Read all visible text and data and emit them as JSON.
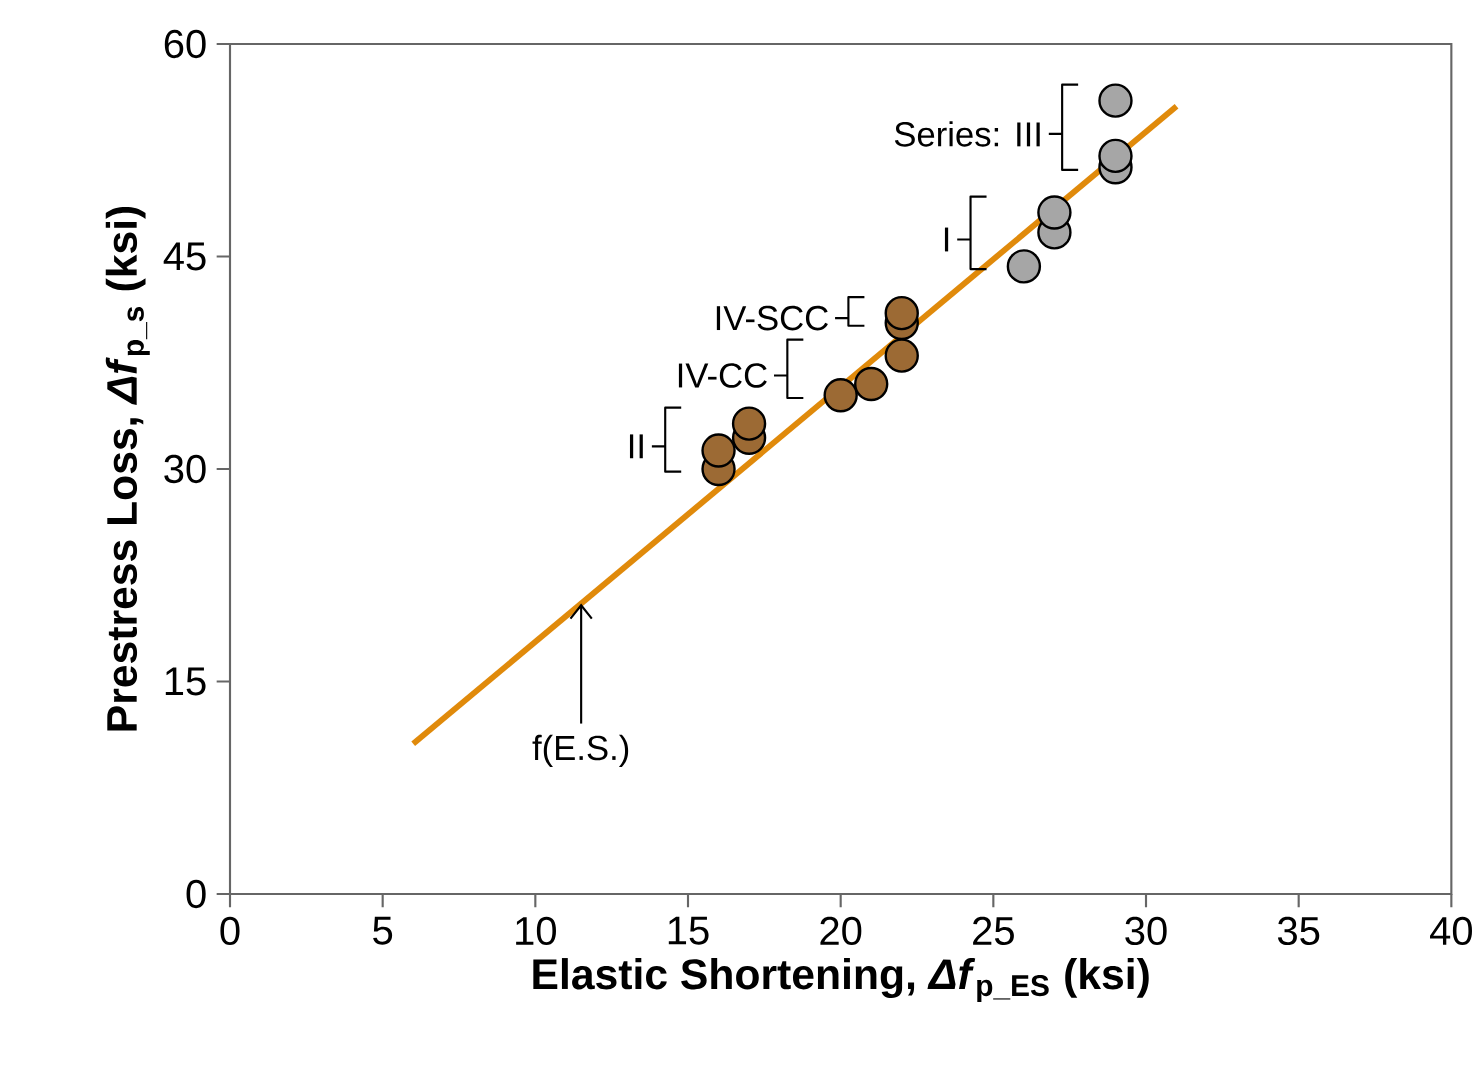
{
  "chart_data": {
    "type": "scatter",
    "xlabel": "Elastic Shortening, *Δf*$_{p_ES}$ (ksi)",
    "ylabel": "Prestress Loss, *Δf*$_{p_s}$  (ksi)",
    "xlim": [
      0,
      40
    ],
    "xticks": [
      0,
      5,
      10,
      15,
      20,
      25,
      30,
      35,
      40
    ],
    "ylim": [
      0,
      60
    ],
    "yticks": [
      0,
      15,
      30,
      45,
      60
    ],
    "grid": false,
    "legend": false,
    "marker": "circle",
    "series": [
      {
        "color": "#a6a6a6",
        "x": [
          29,
          29,
          29
        ],
        "values": [
          51.3,
          52.1,
          56.0
        ]
      },
      {
        "color": "#a6a6a6",
        "x": [
          26,
          27,
          27
        ],
        "values": [
          44.3,
          46.7,
          48.1
        ]
      },
      {
        "color": "#9c6a34",
        "x": [
          22,
          22
        ],
        "values": [
          40.3,
          41.0
        ]
      },
      {
        "color": "#9c6a34",
        "x": [
          20,
          21,
          22
        ],
        "values": [
          35.2,
          36.0,
          38.0
        ]
      },
      {
        "color": "#9c6a34",
        "x": [
          16,
          16,
          17,
          17
        ],
        "values": [
          30.0,
          31.3,
          32.2,
          33.2
        ]
      },
      {
        "type": "line",
        "color": "#e08a0b",
        "marker": "none",
        "x": [
          6,
          31
        ],
        "values": [
          10.6,
          55.6
        ]
      }
    ],
    "annotations": [
      "Series:  III",
      "I",
      "IV-SCC",
      "IV-CC",
      "II",
      {
        "text": "f(E.S.)",
        "x": 11.5,
        "y": 20.5
      }
    ]
  }
}
